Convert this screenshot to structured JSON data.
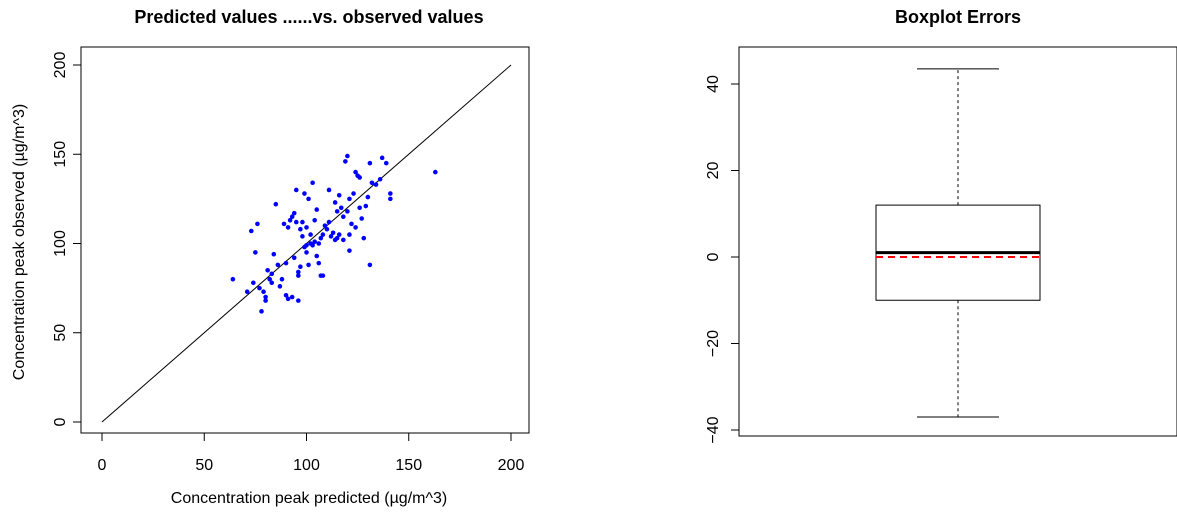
{
  "chart_data": [
    {
      "type": "scatter",
      "title": "Predicted values ......vs. observed values",
      "xlabel": "Concentration peak predicted (µg/m^3)",
      "ylabel": "Concentration peak observed (µg/m^3)",
      "xlim": [
        0,
        200
      ],
      "ylim": [
        0,
        200
      ],
      "xticks": [
        0,
        50,
        100,
        150,
        200
      ],
      "yticks": [
        0,
        50,
        100,
        150,
        200
      ],
      "point_color": "#0000ff",
      "reference_line": {
        "x": [
          0,
          200
        ],
        "y": [
          0,
          200
        ]
      },
      "points": [
        {
          "x": 64,
          "y": 80
        },
        {
          "x": 71,
          "y": 73
        },
        {
          "x": 74,
          "y": 78
        },
        {
          "x": 75,
          "y": 95
        },
        {
          "x": 76,
          "y": 111
        },
        {
          "x": 73,
          "y": 107
        },
        {
          "x": 77,
          "y": 75
        },
        {
          "x": 78,
          "y": 62
        },
        {
          "x": 79,
          "y": 73
        },
        {
          "x": 80,
          "y": 68
        },
        {
          "x": 80,
          "y": 70
        },
        {
          "x": 81,
          "y": 85
        },
        {
          "x": 82,
          "y": 80
        },
        {
          "x": 83,
          "y": 83
        },
        {
          "x": 83,
          "y": 78
        },
        {
          "x": 84,
          "y": 94
        },
        {
          "x": 85,
          "y": 122
        },
        {
          "x": 86,
          "y": 88
        },
        {
          "x": 87,
          "y": 76
        },
        {
          "x": 88,
          "y": 80
        },
        {
          "x": 89,
          "y": 111
        },
        {
          "x": 90,
          "y": 89
        },
        {
          "x": 90,
          "y": 71
        },
        {
          "x": 91,
          "y": 69
        },
        {
          "x": 91,
          "y": 109
        },
        {
          "x": 92,
          "y": 113
        },
        {
          "x": 93,
          "y": 70
        },
        {
          "x": 93,
          "y": 115
        },
        {
          "x": 94,
          "y": 92
        },
        {
          "x": 94,
          "y": 117
        },
        {
          "x": 95,
          "y": 130
        },
        {
          "x": 95,
          "y": 112
        },
        {
          "x": 96,
          "y": 68
        },
        {
          "x": 96,
          "y": 82
        },
        {
          "x": 96,
          "y": 84
        },
        {
          "x": 97,
          "y": 87
        },
        {
          "x": 97,
          "y": 108
        },
        {
          "x": 98,
          "y": 104
        },
        {
          "x": 98,
          "y": 112
        },
        {
          "x": 99,
          "y": 98
        },
        {
          "x": 99,
          "y": 128
        },
        {
          "x": 100,
          "y": 99
        },
        {
          "x": 100,
          "y": 95
        },
        {
          "x": 101,
          "y": 88
        },
        {
          "x": 101,
          "y": 125
        },
        {
          "x": 102,
          "y": 100
        },
        {
          "x": 102,
          "y": 105
        },
        {
          "x": 103,
          "y": 99
        },
        {
          "x": 103,
          "y": 134
        },
        {
          "x": 104,
          "y": 101
        },
        {
          "x": 104,
          "y": 113
        },
        {
          "x": 105,
          "y": 119
        },
        {
          "x": 105,
          "y": 93
        },
        {
          "x": 106,
          "y": 100
        },
        {
          "x": 106,
          "y": 89
        },
        {
          "x": 107,
          "y": 103
        },
        {
          "x": 107,
          "y": 82
        },
        {
          "x": 108,
          "y": 82
        },
        {
          "x": 108,
          "y": 105
        },
        {
          "x": 109,
          "y": 110
        },
        {
          "x": 110,
          "y": 108
        },
        {
          "x": 111,
          "y": 112
        },
        {
          "x": 111,
          "y": 130
        },
        {
          "x": 112,
          "y": 104
        },
        {
          "x": 113,
          "y": 106
        },
        {
          "x": 114,
          "y": 102
        },
        {
          "x": 114,
          "y": 123
        },
        {
          "x": 115,
          "y": 118
        },
        {
          "x": 115,
          "y": 103
        },
        {
          "x": 116,
          "y": 127
        },
        {
          "x": 116,
          "y": 105
        },
        {
          "x": 117,
          "y": 120
        },
        {
          "x": 118,
          "y": 115
        },
        {
          "x": 118,
          "y": 102
        },
        {
          "x": 119,
          "y": 146
        },
        {
          "x": 120,
          "y": 149
        },
        {
          "x": 120,
          "y": 118
        },
        {
          "x": 121,
          "y": 105
        },
        {
          "x": 121,
          "y": 96
        },
        {
          "x": 122,
          "y": 111
        },
        {
          "x": 123,
          "y": 128
        },
        {
          "x": 124,
          "y": 109
        },
        {
          "x": 124,
          "y": 140
        },
        {
          "x": 125,
          "y": 138
        },
        {
          "x": 126,
          "y": 137
        },
        {
          "x": 127,
          "y": 114
        },
        {
          "x": 128,
          "y": 103
        },
        {
          "x": 129,
          "y": 121
        },
        {
          "x": 130,
          "y": 126
        },
        {
          "x": 131,
          "y": 88
        },
        {
          "x": 131,
          "y": 145
        },
        {
          "x": 132,
          "y": 134
        },
        {
          "x": 134,
          "y": 133
        },
        {
          "x": 136,
          "y": 136
        },
        {
          "x": 137,
          "y": 148
        },
        {
          "x": 139,
          "y": 145
        },
        {
          "x": 141,
          "y": 128
        },
        {
          "x": 141,
          "y": 125
        },
        {
          "x": 163,
          "y": 140
        },
        {
          "x": 121,
          "y": 125
        },
        {
          "x": 126,
          "y": 120
        },
        {
          "x": 100,
          "y": 109
        }
      ]
    },
    {
      "type": "box",
      "title": "Boxplot Errors",
      "ylim": [
        -40,
        45
      ],
      "yticks": [
        -40,
        -20,
        0,
        20,
        40
      ],
      "whisker_low": -37,
      "q1": -10,
      "median": 1,
      "q3": 12,
      "whisker_high": 43.5,
      "reference_value": 0,
      "reference_color": "#ff0000"
    }
  ]
}
